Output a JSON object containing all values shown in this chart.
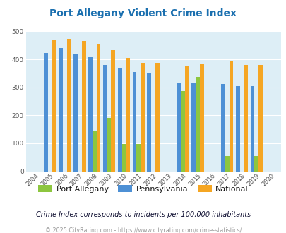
{
  "title": "Port Allegany Violent Crime Index",
  "years": [
    2004,
    2005,
    2006,
    2007,
    2008,
    2009,
    2010,
    2011,
    2012,
    2013,
    2014,
    2015,
    2016,
    2017,
    2018,
    2019,
    2020
  ],
  "port_allegany": {
    "2004": null,
    "2005": null,
    "2006": null,
    "2007": null,
    "2008": 143,
    "2009": 191,
    "2010": 97,
    "2011": 97,
    "2012": null,
    "2013": null,
    "2014": 286,
    "2015": 337,
    "2016": null,
    "2017": 55,
    "2018": null,
    "2019": 55,
    "2020": null
  },
  "pennsylvania": {
    "2004": null,
    "2005": 424,
    "2006": 441,
    "2007": 418,
    "2008": 409,
    "2009": 381,
    "2010": 368,
    "2011": 355,
    "2012": 350,
    "2013": null,
    "2014": 315,
    "2015": 315,
    "2016": null,
    "2017": 311,
    "2018": 305,
    "2019": 305,
    "2020": null
  },
  "national": {
    "2004": null,
    "2005": 469,
    "2006": 474,
    "2007": 467,
    "2008": 455,
    "2009": 432,
    "2010": 405,
    "2011": 387,
    "2012": 387,
    "2013": null,
    "2014": 376,
    "2015": 383,
    "2016": null,
    "2017": 395,
    "2018": 381,
    "2019": 381,
    "2020": null
  },
  "color_port": "#8dc63f",
  "color_pa": "#4d90d5",
  "color_national": "#f5a623",
  "plot_bg": "#ddeef6",
  "ylim": [
    0,
    500
  ],
  "yticks": [
    0,
    100,
    200,
    300,
    400,
    500
  ],
  "title_color": "#1a6faf",
  "subtitle": "Crime Index corresponds to incidents per 100,000 inhabitants",
  "footer": "© 2025 CityRating.com - https://www.cityrating.com/crime-statistics/",
  "bar_width": 0.28
}
